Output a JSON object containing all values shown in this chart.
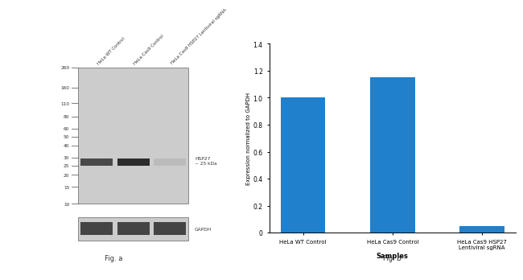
{
  "fig_width": 6.5,
  "fig_height": 3.26,
  "bg_color": "#ffffff",
  "wb_panel": {
    "lane_labels": [
      "HeLa WT Control",
      "HeLa Cas9 Control",
      "HeLa Cas9 HSP27 Lentiviral sgRNA"
    ],
    "mw_markers": [
      260,
      160,
      110,
      80,
      60,
      50,
      40,
      30,
      25,
      20,
      15,
      10
    ],
    "band_label": "HSP27\n~ 25 kDa",
    "gapdh_label": "GAPDH",
    "fig_label": "Fig. a"
  },
  "bar_panel": {
    "categories": [
      "HeLa WT Control",
      "HeLa Cas9 Control",
      "HeLa Cas9 HSP27\nLentiviral sgRNA"
    ],
    "values": [
      1.0,
      1.15,
      0.05
    ],
    "bar_color": "#2080cc",
    "ylabel": "Expression normalized to GAPDH",
    "xlabel": "Samples",
    "ylim": [
      0,
      1.4
    ],
    "yticks": [
      0,
      0.2,
      0.4,
      0.6,
      0.8,
      1.0,
      1.2,
      1.4
    ],
    "fig_label": "Fig. b"
  }
}
